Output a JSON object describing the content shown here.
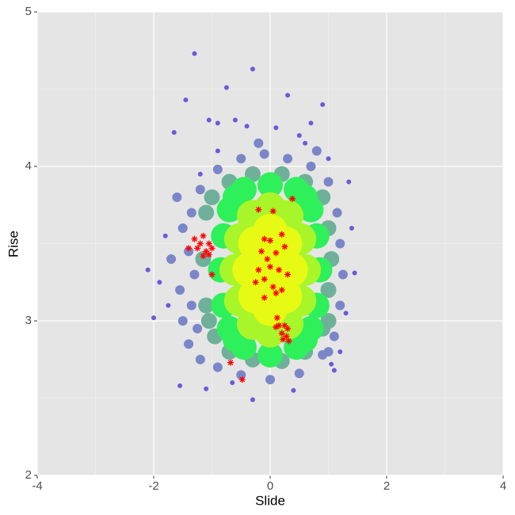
{
  "chart_data": {
    "type": "scatter",
    "xlabel": "Slide",
    "ylabel": "Rise",
    "xlim": [
      -4,
      4
    ],
    "ylim": [
      2,
      5
    ],
    "xticks": [
      -4,
      -2,
      0,
      2,
      4
    ],
    "yticks": [
      2,
      3,
      4,
      5
    ],
    "xminor": [
      -3,
      -1,
      1,
      3
    ],
    "yminor": [
      2.5,
      3.5,
      4.5
    ],
    "grid": true,
    "background": "#e5e5e5",
    "series": [
      {
        "color": "#6b5bd6",
        "size": 3,
        "shape": "circle",
        "x": [
          -1.3,
          -0.3,
          -0.75,
          0.3,
          -1.45,
          0.9,
          -1.05,
          -0.9,
          -0.6,
          -0.4,
          0.7,
          -1.65,
          0.1,
          0.5,
          -2.1,
          -2.0,
          1.45,
          1.35,
          1.1,
          1.05,
          -1.55,
          -1.1,
          -0.3,
          0.4,
          -0.65,
          1.2,
          -1.75,
          -1.8,
          1.4,
          -1.9,
          1.3,
          -0.9,
          0.6,
          -1.2,
          1.0
        ],
        "y": [
          4.73,
          4.63,
          4.51,
          4.46,
          4.43,
          4.4,
          4.3,
          4.28,
          4.3,
          4.26,
          4.28,
          4.22,
          4.25,
          4.2,
          3.33,
          3.02,
          3.31,
          3.9,
          2.68,
          2.72,
          2.58,
          2.56,
          2.49,
          2.55,
          2.6,
          2.8,
          3.1,
          3.55,
          3.6,
          3.25,
          3.05,
          4.1,
          4.15,
          3.95,
          4.05
        ]
      },
      {
        "color": "#7a86c8",
        "size": 6,
        "shape": "circle",
        "x": [
          -1.6,
          -1.5,
          -1.7,
          -1.55,
          -1.5,
          -1.4,
          -1.2,
          -0.9,
          -0.5,
          0,
          0.5,
          0.9,
          1.1,
          1.2,
          1.25,
          1.2,
          1.15,
          1.0,
          0.7,
          0.3,
          -0.1,
          -0.5,
          -0.9,
          -1.2,
          -1.35,
          -1.4,
          -1.35,
          -1.25,
          0.8,
          -0.2,
          -1.3,
          1.0
        ],
        "y": [
          3.8,
          3.6,
          3.4,
          3.2,
          3.0,
          2.85,
          2.75,
          2.7,
          2.65,
          2.62,
          2.66,
          2.78,
          2.9,
          3.1,
          3.3,
          3.5,
          3.7,
          3.9,
          4.0,
          4.05,
          4.08,
          4.05,
          3.98,
          3.85,
          3.7,
          3.45,
          3.1,
          2.95,
          4.1,
          4.15,
          3.3,
          2.8
        ]
      },
      {
        "color": "#6fb09a",
        "size": 10,
        "shape": "circle",
        "x": [
          -1.1,
          -1.15,
          -1.1,
          -0.95,
          -0.7,
          -0.3,
          0.2,
          0.6,
          0.9,
          1.0,
          1.05,
          1.0,
          0.9,
          0.6,
          0.2,
          -0.3,
          -0.7,
          -1.0,
          -1.05,
          1.0
        ],
        "y": [
          3.7,
          3.4,
          3.1,
          2.9,
          2.8,
          2.75,
          2.74,
          2.8,
          2.95,
          3.2,
          3.4,
          3.6,
          3.8,
          3.9,
          3.95,
          3.95,
          3.9,
          3.8,
          3.0,
          3.0
        ]
      },
      {
        "color": "#2ef05a",
        "size": 16,
        "shape": "circle",
        "x": [
          -0.85,
          -0.8,
          -0.7,
          -0.45,
          0,
          0.45,
          0.7,
          0.8,
          0.85,
          0.8,
          0.7,
          0.45,
          0,
          -0.45,
          -0.7,
          -0.8,
          0.6,
          -0.6,
          0.6,
          -0.6
        ],
        "y": [
          3.33,
          3.55,
          3.72,
          3.85,
          3.88,
          3.85,
          3.72,
          3.55,
          3.33,
          3.1,
          2.95,
          2.83,
          2.78,
          2.83,
          2.95,
          3.1,
          3.8,
          3.8,
          2.88,
          2.88
        ]
      },
      {
        "color": "#a8f52a",
        "size": 20,
        "shape": "circle",
        "x": [
          -0.6,
          -0.52,
          -0.3,
          0,
          0.3,
          0.52,
          0.6,
          0.52,
          0.3,
          0,
          -0.3,
          -0.52
        ],
        "y": [
          3.33,
          3.53,
          3.68,
          3.73,
          3.68,
          3.53,
          3.33,
          3.13,
          2.98,
          2.93,
          2.98,
          3.13
        ]
      },
      {
        "color": "#e6fa14",
        "size": 22,
        "shape": "circle",
        "x": [
          -0.35,
          -0.25,
          0,
          0.25,
          0.35,
          0.25,
          0,
          -0.25,
          0,
          -0.15,
          0.15
        ],
        "y": [
          3.33,
          3.5,
          3.58,
          3.5,
          3.33,
          3.16,
          3.08,
          3.16,
          3.33,
          3.4,
          3.25
        ]
      },
      {
        "color": "#ff0000",
        "size": 4,
        "shape": "star",
        "x": [
          -1.3,
          -1.2,
          -1.15,
          -1.1,
          -1.05,
          -1.0,
          -1.15,
          -1.25,
          -1.4,
          -1.05,
          -1.0,
          -0.2,
          0.05,
          0.38,
          -0.1,
          0.0,
          0.2,
          -0.15,
          0.1,
          0.25,
          -0.05,
          -0.2,
          0.0,
          0.15,
          0.3,
          -0.25,
          0.05,
          0.2,
          -0.1,
          -0.1,
          0.1,
          0.12,
          0.15,
          0.25,
          0.3,
          0.2,
          0.28,
          0.32,
          0.22,
          0.1,
          -0.68,
          -0.48
        ],
        "y": [
          3.53,
          3.5,
          3.55,
          3.45,
          3.5,
          3.47,
          3.42,
          3.47,
          3.47,
          3.43,
          3.3,
          3.72,
          3.71,
          3.79,
          3.53,
          3.52,
          3.56,
          3.45,
          3.44,
          3.48,
          3.4,
          3.33,
          3.35,
          3.33,
          3.3,
          3.25,
          3.22,
          3.2,
          3.27,
          3.15,
          3.18,
          3.02,
          2.97,
          2.97,
          2.95,
          2.92,
          2.9,
          2.87,
          2.88,
          2.96,
          2.73,
          2.62
        ]
      }
    ]
  }
}
